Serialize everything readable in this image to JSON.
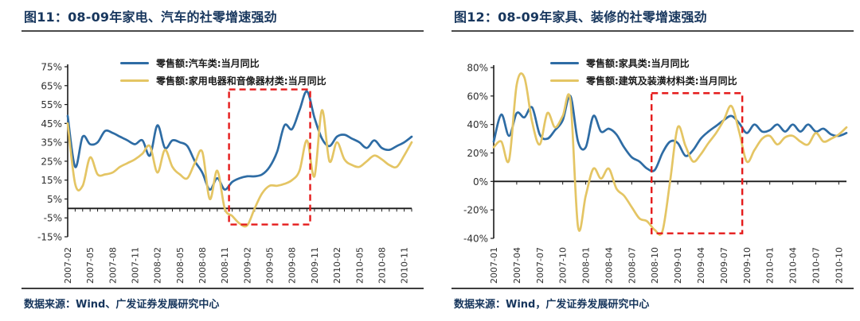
{
  "palette": {
    "title_color": "#17365d",
    "axis_color": "#1a1a1a",
    "tick_label_color": "#2f2f2f",
    "highlight_box_color": "#e51b1b",
    "series_blue": "#2e6ca4",
    "series_yellow": "#e4c564"
  },
  "panels": [
    {
      "title": "图11：08-09年家电、汽车的社零增速强劲",
      "source": "数据来源：Wind、广发证券发展研究中心",
      "chart_data": {
        "type": "line",
        "title": "08-09年家电、汽车的社零增速强劲",
        "xlabel": "",
        "ylabel": "",
        "ylim": [
          -15,
          75
        ],
        "grid": false,
        "legend_position": "top",
        "yticks": [
          75,
          65,
          55,
          45,
          35,
          25,
          15,
          5,
          -5,
          -15
        ],
        "ytick_labels": [
          "75%",
          "65%",
          "55%",
          "45%",
          "35%",
          "25%",
          "15%",
          "5%",
          "-5%",
          "-15%"
        ],
        "x": [
          "2007-02",
          "2007-03",
          "2007-04",
          "2007-05",
          "2007-06",
          "2007-07",
          "2007-08",
          "2007-09",
          "2007-10",
          "2007-11",
          "2007-12",
          "2008-01",
          "2008-02",
          "2008-03",
          "2008-04",
          "2008-05",
          "2008-06",
          "2008-07",
          "2008-08",
          "2008-09",
          "2008-10",
          "2008-11",
          "2008-12",
          "2009-01",
          "2009-02",
          "2009-03",
          "2009-04",
          "2009-05",
          "2009-06",
          "2009-07",
          "2009-08",
          "2009-09",
          "2009-10",
          "2009-11",
          "2009-12",
          "2010-01",
          "2010-02",
          "2010-03",
          "2010-04",
          "2010-05",
          "2010-06",
          "2010-07",
          "2010-08",
          "2010-09",
          "2010-10",
          "2010-11",
          "2010-12"
        ],
        "xtick_labels": [
          "2007-02",
          "2007-05",
          "2007-08",
          "2007-11",
          "2008-02",
          "2008-05",
          "2008-08",
          "2008-11",
          "2009-02",
          "2009-05",
          "2009-08",
          "2009-11",
          "2010-02",
          "2010-05",
          "2010-08",
          "2010-11"
        ],
        "series": [
          {
            "name": "零售额:汽车类:当月同比",
            "color": "#2e6ca4",
            "values": [
              49,
              22,
              38,
              34,
              35,
              41,
              40,
              38,
              36,
              34,
              36,
              28,
              44,
              32,
              36,
              35,
              33,
              25,
              19,
              10,
              16,
              10,
              14,
              16,
              17,
              17,
              18,
              22,
              30,
              44,
              42,
              52,
              62,
              48,
              37,
              33,
              38,
              39,
              37,
              35,
              32,
              36,
              32,
              31,
              33,
              35,
              38
            ]
          },
          {
            "name": "零售额:家用电器和音像器材类:当月同比",
            "color": "#e4c564",
            "values": [
              45,
              13,
              12,
              27,
              18,
              18,
              19,
              22,
              24,
              26,
              29,
              33,
              19,
              31,
              22,
              18,
              16,
              24,
              30,
              5,
              20,
              0,
              -4,
              -8,
              -9,
              0,
              8,
              12,
              12,
              13,
              15,
              20,
              36,
              17,
              52,
              25,
              35,
              26,
              23,
              22,
              25,
              28,
              26,
              23,
              22,
              28,
              35
            ]
          }
        ],
        "highlight_box": {
          "from": "2008-12",
          "to": "2009-10",
          "top": 63,
          "bottom": -8.5,
          "color": "#e51b1b"
        }
      }
    },
    {
      "title": "图12：08-09年家具、装修的社零增速强劲",
      "source": "数据来源：Wind，广发证券发展研究中心",
      "chart_data": {
        "type": "line",
        "title": "08-09年家具、装修的社零增速强劲",
        "xlabel": "",
        "ylabel": "",
        "ylim": [
          -40,
          80
        ],
        "grid": false,
        "legend_position": "top",
        "yticks": [
          80,
          60,
          40,
          20,
          0,
          -20,
          -40
        ],
        "ytick_labels": [
          "80%",
          "60%",
          "40%",
          "20%",
          "0%",
          "-20%",
          "-40%"
        ],
        "x": [
          "2007-01",
          "2007-02",
          "2007-03",
          "2007-04",
          "2007-05",
          "2007-06",
          "2007-07",
          "2007-08",
          "2007-09",
          "2007-10",
          "2007-11",
          "2007-12",
          "2008-01",
          "2008-02",
          "2008-03",
          "2008-04",
          "2008-05",
          "2008-06",
          "2008-07",
          "2008-08",
          "2008-09",
          "2008-10",
          "2008-11",
          "2008-12",
          "2009-01",
          "2009-02",
          "2009-03",
          "2009-04",
          "2009-05",
          "2009-06",
          "2009-07",
          "2009-08",
          "2009-09",
          "2009-10",
          "2009-11",
          "2009-12",
          "2010-01",
          "2010-02",
          "2010-03",
          "2010-04",
          "2010-05",
          "2010-06",
          "2010-07",
          "2010-08",
          "2010-09",
          "2010-10",
          "2010-11"
        ],
        "xtick_labels": [
          "2007-01",
          "2007-04",
          "2007-07",
          "2007-10",
          "2008-01",
          "2008-04",
          "2008-07",
          "2008-10",
          "2009-01",
          "2009-04",
          "2009-07",
          "2009-10",
          "2010-01",
          "2010-04",
          "2010-07",
          "2010-10"
        ],
        "series": [
          {
            "name": "零售额:家具类:当月同比",
            "color": "#2e6ca4",
            "values": [
              28,
              47,
              32,
              48,
              45,
              52,
              33,
              30,
              36,
              43,
              60,
              28,
              24,
              46,
              35,
              37,
              33,
              24,
              17,
              14,
              9,
              8,
              20,
              28,
              27,
              18,
              22,
              30,
              35,
              39,
              43,
              46,
              41,
              34,
              40,
              35,
              36,
              40,
              35,
              40,
              35,
              40,
              35,
              37,
              33,
              32,
              34
            ]
          },
          {
            "name": "零售额:建筑及装潢材料类:当月同比",
            "color": "#e4c564",
            "values": [
              24,
              28,
              15,
              68,
              73,
              42,
              26,
              48,
              38,
              46,
              57,
              -32,
              -10,
              9,
              2,
              9,
              -5,
              -10,
              -18,
              -26,
              -28,
              -34,
              -35,
              0,
              38,
              25,
              14,
              19,
              27,
              34,
              43,
              53,
              35,
              14,
              22,
              30,
              32,
              26,
              31,
              32,
              28,
              26,
              34,
              28,
              30,
              33,
              38
            ]
          }
        ],
        "highlight_box": {
          "from": "2008-10",
          "to": "2009-09",
          "top": 62,
          "bottom": -36.5,
          "color": "#e51b1b"
        }
      }
    }
  ]
}
